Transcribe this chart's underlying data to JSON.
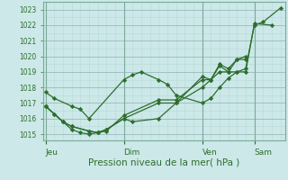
{
  "bg_color": "#cce8e8",
  "grid_color_minor": "#b8d8d8",
  "grid_color_major": "#99bbbb",
  "line_color": "#2d6e2d",
  "ylabel_range": [
    1015,
    1023
  ],
  "yticks": [
    1015,
    1016,
    1017,
    1018,
    1019,
    1020,
    1021,
    1022,
    1023
  ],
  "xlabel": "Pression niveau de la mer( hPa )",
  "xtick_labels": [
    "Jeu",
    "Dim",
    "Ven",
    "Sam"
  ],
  "xtick_positions": [
    0.0,
    0.333,
    0.667,
    0.889
  ],
  "series": [
    {
      "x": [
        0.0,
        0.037,
        0.111,
        0.148,
        0.185,
        0.333,
        0.37,
        0.407,
        0.481,
        0.519,
        0.556,
        0.667,
        0.704,
        0.741,
        0.778,
        0.815,
        0.852,
        0.889,
        0.926,
        1.0
      ],
      "y": [
        1017.7,
        1017.3,
        1016.8,
        1016.6,
        1016.0,
        1018.5,
        1018.8,
        1019.0,
        1018.5,
        1018.2,
        1017.5,
        1017.0,
        1017.3,
        1018.0,
        1018.6,
        1019.0,
        1019.2,
        1022.0,
        1022.2,
        1023.1
      ]
    },
    {
      "x": [
        0.0,
        0.037,
        0.074,
        0.111,
        0.185,
        0.222,
        0.259,
        0.333,
        0.37,
        0.481,
        0.556,
        0.667,
        0.704,
        0.741,
        0.778,
        0.815,
        0.852,
        0.889,
        0.963
      ],
      "y": [
        1016.8,
        1016.3,
        1015.8,
        1015.5,
        1015.2,
        1015.1,
        1015.3,
        1016.0,
        1015.8,
        1016.0,
        1017.0,
        1018.7,
        1018.5,
        1019.0,
        1019.0,
        1019.0,
        1019.0,
        1022.1,
        1022.0
      ]
    },
    {
      "x": [
        0.0,
        0.037,
        0.074,
        0.111,
        0.185,
        0.222,
        0.259,
        0.333,
        0.481,
        0.556,
        0.667,
        0.704,
        0.741,
        0.778,
        0.815,
        0.852
      ],
      "y": [
        1016.8,
        1016.3,
        1015.8,
        1015.5,
        1015.2,
        1015.1,
        1015.2,
        1016.2,
        1017.2,
        1017.2,
        1018.5,
        1018.5,
        1019.4,
        1019.0,
        1019.8,
        1019.8
      ]
    },
    {
      "x": [
        0.0,
        0.074,
        0.111,
        0.148,
        0.185,
        0.222,
        0.259,
        0.333,
        0.481,
        0.556,
        0.667,
        0.704,
        0.741,
        0.778,
        0.815,
        0.852
      ],
      "y": [
        1016.8,
        1015.8,
        1015.3,
        1015.1,
        1015.0,
        1015.1,
        1015.3,
        1016.0,
        1017.0,
        1017.0,
        1018.0,
        1018.5,
        1019.5,
        1019.2,
        1019.8,
        1020.0
      ]
    }
  ],
  "vline_positions": [
    0.0,
    0.333,
    0.667,
    0.889
  ],
  "xlim": [
    -0.01,
    1.02
  ],
  "ylim": [
    1014.6,
    1023.5
  ]
}
